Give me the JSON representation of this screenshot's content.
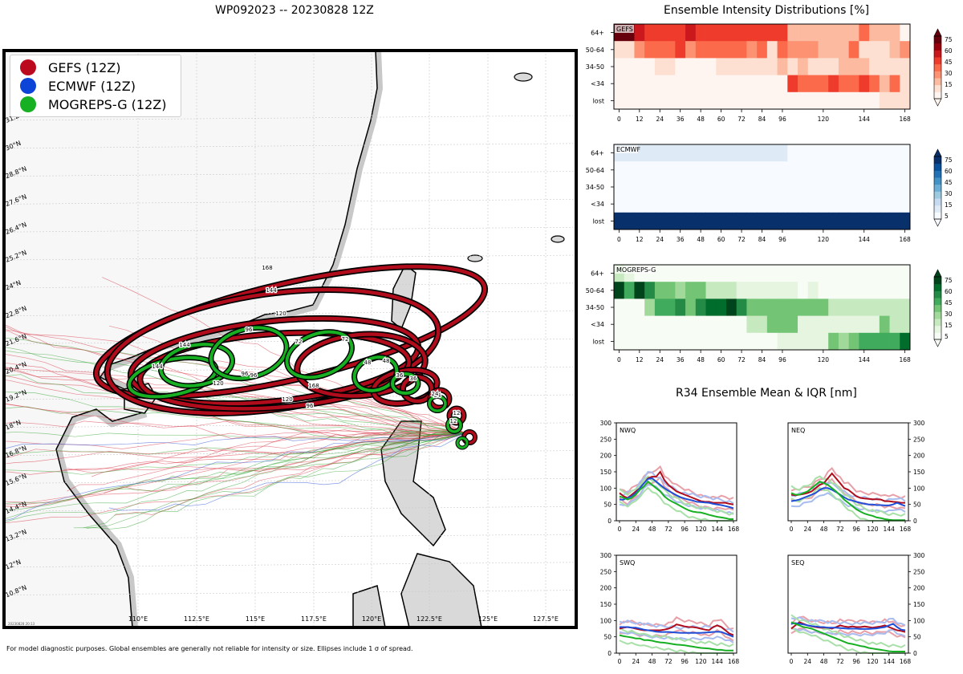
{
  "map": {
    "title": "WP092023 -- 20230828 12Z",
    "footnote": "For model diagnostic purposes. Global ensembles are generally not reliable for intensity or size. Ellipses include 1 σ of spread.",
    "stamp": "20230828 20:13",
    "legend": [
      {
        "label": "GEFS (12Z)",
        "color": "#bb0a1e"
      },
      {
        "label": "ECMWF (12Z)",
        "color": "#0b44d6"
      },
      {
        "label": "MOGREPS-G (12Z)",
        "color": "#18b023"
      }
    ],
    "lon_labels": [
      "110°E",
      "112.5°E",
      "115°E",
      "117.5°E",
      "120°E",
      "122.5°E",
      "125°E",
      "127.5°E"
    ],
    "lat_labels": [
      "31.2°N",
      "30°N",
      "28.8°N",
      "27.6°N",
      "26.4°N",
      "25.2°N",
      "24°N",
      "22.8°N",
      "21.6°N",
      "20.4°N",
      "19.2°N",
      "18°N",
      "16.8°N",
      "15.6°N",
      "14.4°N",
      "13.2°N",
      "12°N",
      "10.8°N"
    ],
    "gefs_hours": [
      "12",
      "24",
      "36",
      "48",
      "72",
      "96",
      "120",
      "144",
      "168",
      "96",
      "120",
      "144",
      "168"
    ],
    "mog_hours": [
      "12",
      "24",
      "36",
      "48",
      "72",
      "96",
      "96",
      "120",
      "144"
    ]
  },
  "chart_data": [
    {
      "type": "heatmap",
      "title": "Ensemble Intensity Distributions [%]",
      "panel": "GEFS",
      "colormap": "Reds",
      "rows": [
        "64+",
        "50-64",
        "34-50",
        "<34",
        "lost"
      ],
      "x_hours": [
        0,
        6,
        12,
        18,
        24,
        30,
        36,
        42,
        48,
        54,
        60,
        66,
        72,
        78,
        84,
        90,
        96,
        102,
        108,
        114,
        120,
        126,
        132,
        138,
        144,
        150,
        156,
        162,
        168
      ],
      "xticks": [
        "0",
        "12",
        "24",
        "36",
        "48",
        "60",
        "72",
        "84",
        "96",
        "120",
        "144",
        "168"
      ],
      "colorbar_ticks": [
        "5",
        "15",
        "30",
        "45",
        "60",
        "75"
      ],
      "values": [
        [
          85,
          85,
          60,
          50,
          55,
          55,
          50,
          60,
          50,
          50,
          50,
          50,
          50,
          55,
          50,
          50,
          50,
          25,
          25,
          25,
          25,
          25,
          25,
          25,
          40,
          20,
          20,
          20,
          5
        ],
        [
          15,
          15,
          30,
          40,
          40,
          45,
          50,
          30,
          45,
          40,
          40,
          40,
          40,
          30,
          40,
          15,
          40,
          35,
          35,
          35,
          25,
          25,
          25,
          40,
          15,
          15,
          15,
          25,
          30
        ],
        [
          0,
          0,
          5,
          5,
          10,
          10,
          5,
          5,
          5,
          5,
          10,
          10,
          15,
          15,
          10,
          10,
          20,
          10,
          25,
          10,
          15,
          10,
          25,
          20,
          20,
          15,
          10,
          15,
          15
        ],
        [
          0,
          0,
          0,
          0,
          0,
          0,
          0,
          0,
          0,
          0,
          0,
          0,
          0,
          0,
          0,
          0,
          5,
          50,
          45,
          45,
          45,
          50,
          45,
          45,
          55,
          45,
          20,
          45,
          10
        ],
        [
          0,
          0,
          0,
          0,
          0,
          0,
          0,
          0,
          0,
          0,
          0,
          0,
          0,
          0,
          0,
          0,
          0,
          0,
          0,
          0,
          0,
          0,
          0,
          0,
          5,
          5,
          10,
          10,
          15
        ]
      ]
    },
    {
      "type": "heatmap",
      "panel": "ECMWF",
      "colormap": "Blues",
      "rows": [
        "64+",
        "50-64",
        "34-50",
        "<34",
        "lost"
      ],
      "x_hours": [
        0,
        6,
        12,
        18,
        24,
        30,
        36,
        42,
        48,
        54,
        60,
        66,
        72,
        78,
        84,
        90,
        96,
        102,
        108,
        114,
        120,
        126,
        132,
        138,
        144,
        150,
        156,
        162,
        168
      ],
      "xticks": [
        "0",
        "12",
        "24",
        "36",
        "48",
        "60",
        "72",
        "84",
        "96",
        "120",
        "144",
        "168"
      ],
      "colorbar_ticks": [
        "5",
        "15",
        "30",
        "45",
        "60",
        "75"
      ],
      "values": [
        [
          14,
          14,
          14,
          14,
          14,
          14,
          14,
          14,
          14,
          14,
          14,
          14,
          14,
          14,
          14,
          14,
          14,
          0,
          0,
          0,
          0,
          0,
          0,
          0,
          0,
          0,
          0,
          0,
          0
        ],
        [
          0,
          0,
          0,
          0,
          0,
          0,
          0,
          0,
          0,
          0,
          0,
          0,
          0,
          0,
          0,
          0,
          0,
          0,
          0,
          0,
          0,
          0,
          0,
          0,
          0,
          0,
          0,
          0,
          0
        ],
        [
          0,
          0,
          0,
          0,
          0,
          0,
          0,
          0,
          0,
          0,
          0,
          0,
          0,
          0,
          0,
          0,
          0,
          0,
          0,
          0,
          0,
          0,
          0,
          0,
          0,
          0,
          0,
          0,
          0
        ],
        [
          0,
          0,
          0,
          0,
          0,
          0,
          0,
          0,
          0,
          0,
          0,
          0,
          0,
          0,
          0,
          0,
          0,
          0,
          0,
          0,
          0,
          0,
          0,
          0,
          0,
          0,
          0,
          0,
          0
        ],
        [
          86,
          86,
          86,
          86,
          86,
          86,
          86,
          86,
          86,
          86,
          86,
          86,
          86,
          86,
          86,
          86,
          86,
          86,
          86,
          86,
          86,
          86,
          86,
          86,
          86,
          86,
          86,
          86,
          86
        ]
      ]
    },
    {
      "type": "heatmap",
      "panel": "MOGREPS-G",
      "colormap": "Greens",
      "rows": [
        "64+",
        "50-64",
        "34-50",
        "<34",
        "lost"
      ],
      "x_hours": [
        0,
        6,
        12,
        18,
        24,
        30,
        36,
        42,
        48,
        54,
        60,
        66,
        72,
        78,
        84,
        90,
        96,
        102,
        108,
        114,
        120,
        126,
        132,
        138,
        144,
        150,
        156,
        162,
        168
      ],
      "xticks": [
        "0",
        "12",
        "24",
        "36",
        "48",
        "60",
        "72",
        "84",
        "96",
        "120",
        "144",
        "168"
      ],
      "colorbar_ticks": [
        "5",
        "15",
        "30",
        "45",
        "60",
        "75"
      ],
      "values": [
        [
          20,
          10,
          0,
          0,
          0,
          0,
          0,
          0,
          0,
          0,
          0,
          0,
          0,
          0,
          0,
          0,
          0,
          0,
          0,
          0,
          0,
          0,
          0,
          0,
          0,
          0,
          0,
          0,
          0
        ],
        [
          80,
          50,
          90,
          60,
          40,
          40,
          35,
          40,
          40,
          25,
          25,
          25,
          15,
          15,
          15,
          15,
          15,
          15,
          5,
          15,
          0,
          0,
          0,
          0,
          0,
          0,
          0,
          0,
          0
        ],
        [
          0,
          0,
          5,
          35,
          50,
          50,
          65,
          40,
          65,
          75,
          75,
          85,
          65,
          45,
          40,
          40,
          40,
          40,
          40,
          40,
          45,
          25,
          25,
          25,
          25,
          25,
          25,
          25,
          25
        ],
        [
          0,
          0,
          0,
          0,
          0,
          0,
          0,
          0,
          0,
          0,
          0,
          0,
          5,
          25,
          25,
          40,
          40,
          40,
          15,
          15,
          15,
          15,
          15,
          15,
          15,
          15,
          40,
          25,
          25
        ],
        [
          0,
          0,
          0,
          0,
          0,
          0,
          0,
          0,
          0,
          0,
          0,
          0,
          0,
          0,
          0,
          0,
          15,
          15,
          15,
          15,
          15,
          45,
          35,
          45,
          55,
          55,
          55,
          55,
          75
        ]
      ]
    },
    {
      "type": "line",
      "title": "R34 Ensemble Mean & IQR [nm]",
      "panel": "NWQ",
      "x": [
        0,
        6,
        12,
        18,
        24,
        30,
        36,
        42,
        48,
        54,
        60,
        66,
        72,
        78,
        84,
        90,
        96,
        102,
        108,
        114,
        120,
        126,
        132,
        138,
        144,
        150,
        156,
        162,
        168
      ],
      "xticks": [
        "0",
        "24",
        "48",
        "72",
        "96",
        "120",
        "144",
        "168"
      ],
      "yticks": [
        "0",
        "50",
        "100",
        "150",
        "200",
        "250",
        "300"
      ],
      "ylim": [
        0,
        300
      ],
      "series": [
        {
          "name": "GEFS",
          "values": [
            85,
            75,
            70,
            80,
            90,
            100,
            115,
            130,
            135,
            135,
            150,
            125,
            110,
            100,
            90,
            85,
            80,
            75,
            70,
            65,
            60,
            58,
            58,
            55,
            55,
            55,
            55,
            52,
            50
          ]
        },
        {
          "name": "ECMWF",
          "values": [
            65,
            65,
            70,
            75,
            85,
            100,
            115,
            128,
            130,
            120,
            110,
            100,
            92,
            85,
            78,
            72,
            68,
            65,
            62,
            58,
            57,
            56,
            55,
            52,
            50,
            48,
            45,
            42,
            38
          ]
        },
        {
          "name": "MOGREPS-G",
          "values": [
            75,
            70,
            65,
            70,
            80,
            95,
            105,
            120,
            110,
            100,
            90,
            75,
            65,
            58,
            52,
            45,
            38,
            32,
            28,
            26,
            25,
            22,
            18,
            15,
            12,
            10,
            8,
            5,
            5
          ]
        }
      ]
    },
    {
      "type": "line",
      "panel": "NEQ",
      "x": [
        0,
        6,
        12,
        18,
        24,
        30,
        36,
        42,
        48,
        54,
        60,
        66,
        72,
        78,
        84,
        90,
        96,
        102,
        108,
        114,
        120,
        126,
        132,
        138,
        144,
        150,
        156,
        162,
        168
      ],
      "xticks": [
        "0",
        "24",
        "48",
        "72",
        "96",
        "120",
        "144",
        "168"
      ],
      "yticks": [
        "0",
        "50",
        "100",
        "150",
        "200",
        "250",
        "300"
      ],
      "ylim": [
        0,
        300
      ],
      "series": [
        {
          "name": "GEFS",
          "values": [
            80,
            78,
            80,
            82,
            85,
            90,
            100,
            110,
            115,
            130,
            145,
            130,
            115,
            100,
            95,
            85,
            75,
            70,
            68,
            67,
            66,
            66,
            65,
            60,
            60,
            58,
            57,
            55,
            55
          ]
        },
        {
          "name": "ECMWF",
          "values": [
            60,
            62,
            65,
            70,
            75,
            80,
            85,
            95,
            100,
            100,
            95,
            88,
            80,
            72,
            65,
            62,
            58,
            55,
            52,
            50,
            50,
            48,
            48,
            47,
            47,
            50,
            55,
            50,
            45
          ]
        },
        {
          "name": "MOGREPS-G",
          "values": [
            85,
            80,
            80,
            85,
            90,
            100,
            110,
            120,
            115,
            110,
            100,
            90,
            78,
            65,
            55,
            45,
            35,
            28,
            22,
            18,
            15,
            10,
            8,
            5,
            3,
            2,
            2,
            2,
            2
          ]
        }
      ]
    },
    {
      "type": "line",
      "panel": "SWQ",
      "x": [
        0,
        6,
        12,
        18,
        24,
        30,
        36,
        42,
        48,
        54,
        60,
        66,
        72,
        78,
        84,
        90,
        96,
        102,
        108,
        114,
        120,
        126,
        132,
        138,
        144,
        150,
        156,
        162,
        168
      ],
      "xticks": [
        "0",
        "24",
        "48",
        "72",
        "96",
        "120",
        "144",
        "168"
      ],
      "yticks": [
        "0",
        "50",
        "100",
        "150",
        "200",
        "250",
        "300"
      ],
      "ylim": [
        0,
        300
      ],
      "series": [
        {
          "name": "GEFS",
          "values": [
            75,
            78,
            80,
            78,
            75,
            72,
            70,
            70,
            70,
            70,
            70,
            72,
            75,
            80,
            88,
            85,
            82,
            80,
            80,
            78,
            75,
            72,
            70,
            80,
            85,
            80,
            70,
            60,
            55
          ]
        },
        {
          "name": "ECMWF",
          "values": [
            80,
            80,
            80,
            78,
            78,
            75,
            72,
            70,
            68,
            66,
            65,
            65,
            65,
            64,
            63,
            62,
            62,
            62,
            62,
            62,
            62,
            63,
            64,
            65,
            66,
            65,
            60,
            55,
            50
          ]
        },
        {
          "name": "MOGREPS-G",
          "values": [
            55,
            52,
            50,
            48,
            45,
            45,
            40,
            40,
            38,
            35,
            33,
            32,
            30,
            28,
            26,
            25,
            24,
            22,
            20,
            18,
            16,
            15,
            14,
            12,
            10,
            10,
            8,
            8,
            8
          ]
        }
      ]
    },
    {
      "type": "line",
      "panel": "SEQ",
      "x": [
        0,
        6,
        12,
        18,
        24,
        30,
        36,
        42,
        48,
        54,
        60,
        66,
        72,
        78,
        84,
        90,
        96,
        102,
        108,
        114,
        120,
        126,
        132,
        138,
        144,
        150,
        156,
        162,
        168
      ],
      "xticks": [
        "0",
        "24",
        "48",
        "72",
        "96",
        "120",
        "144",
        "168"
      ],
      "yticks": [
        "0",
        "50",
        "100",
        "150",
        "200",
        "250",
        "300"
      ],
      "ylim": [
        0,
        300
      ],
      "series": [
        {
          "name": "GEFS",
          "values": [
            75,
            85,
            95,
            90,
            85,
            82,
            80,
            78,
            78,
            78,
            75,
            80,
            85,
            82,
            80,
            82,
            80,
            80,
            82,
            80,
            78,
            80,
            82,
            85,
            80,
            75,
            70,
            68,
            65
          ]
        },
        {
          "name": "ECMWF",
          "values": [
            90,
            92,
            90,
            88,
            85,
            83,
            82,
            80,
            80,
            78,
            78,
            78,
            77,
            76,
            75,
            75,
            75,
            74,
            74,
            74,
            75,
            76,
            78,
            80,
            85,
            90,
            80,
            72,
            70
          ]
        },
        {
          "name": "MOGREPS-G",
          "values": [
            95,
            90,
            85,
            80,
            78,
            75,
            70,
            65,
            60,
            55,
            50,
            45,
            40,
            35,
            30,
            28,
            25,
            22,
            20,
            16,
            14,
            12,
            10,
            8,
            6,
            5,
            5,
            5,
            5
          ]
        }
      ]
    }
  ]
}
